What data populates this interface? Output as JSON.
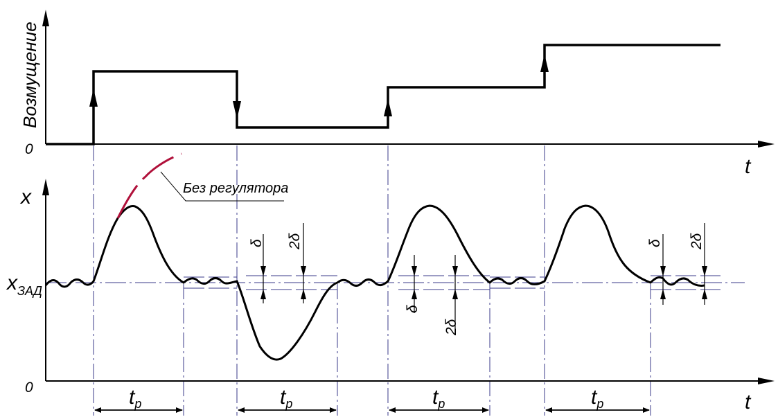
{
  "top_plot": {
    "ylabel": "Возмущение",
    "origin_label": "0",
    "t_label": "t"
  },
  "bottom_plot": {
    "x_label": "x",
    "setpoint_label": "x",
    "setpoint_subscript": "ЗАД",
    "origin_label": "0",
    "t_label": "t",
    "annotation": "Без регулятора",
    "delta": "δ",
    "two_delta": "2δ",
    "tp_main": "t",
    "tp_sub": "p"
  },
  "colors": {
    "ink": "#000000",
    "dash_lines": "#3a3a8a",
    "no_regulator_curve": "#b0103a"
  }
}
